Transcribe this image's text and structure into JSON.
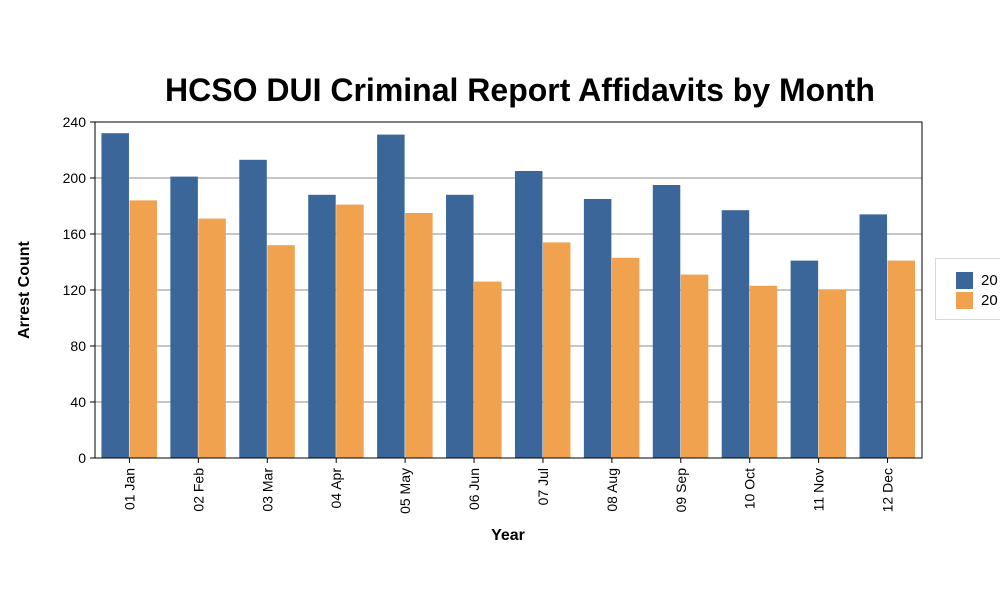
{
  "chart_data": {
    "type": "bar",
    "title": "HCSO DUI Criminal Report Affidavits by Month",
    "xlabel": "Year",
    "ylabel": "Arrest Count",
    "ylim": [
      0,
      240
    ],
    "yticks": [
      0,
      40,
      80,
      120,
      160,
      200,
      240
    ],
    "categories": [
      "01 Jan",
      "02 Feb",
      "03 Mar",
      "04 Apr",
      "05 May",
      "06 Jun",
      "07 Jul",
      "08 Aug",
      "09 Sep",
      "10 Oct",
      "11 Nov",
      "12 Dec"
    ],
    "series": [
      {
        "name": "20",
        "color": "#3a6699",
        "values": [
          232,
          201,
          213,
          188,
          231,
          188,
          205,
          185,
          195,
          177,
          141,
          174
        ]
      },
      {
        "name": "20",
        "color": "#f0a24f",
        "values": [
          184,
          171,
          152,
          181,
          175,
          126,
          154,
          143,
          131,
          123,
          120,
          141
        ]
      }
    ],
    "legend_position": "right",
    "grid": true
  }
}
